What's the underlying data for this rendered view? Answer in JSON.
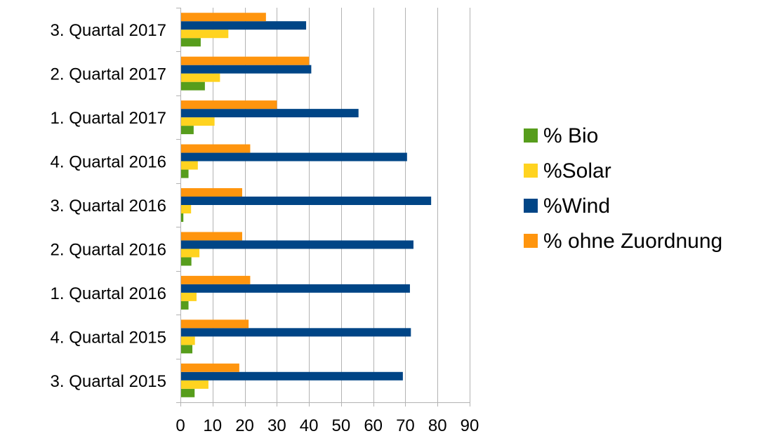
{
  "chart_data": {
    "type": "bar",
    "orientation": "horizontal",
    "title": "",
    "xlabel": "",
    "ylabel": "",
    "xlim": [
      0,
      90
    ],
    "x_ticks": [
      0,
      10,
      20,
      30,
      40,
      50,
      60,
      70,
      80,
      90
    ],
    "grid": "vertical",
    "legend_position": "right",
    "categories": [
      "3. Quartal 2015",
      "4. Quartal 2015",
      "1. Quartal 2016",
      "2. Quartal 2016",
      "3. Quartal 2016",
      "4. Quartal 2016",
      "1. Quartal 2017",
      "2. Quartal 2017",
      "3. Quartal 2017"
    ],
    "series": [
      {
        "name": "% Bio",
        "color": "#579d1c",
        "values": [
          4.2,
          3.5,
          2.3,
          3.2,
          0.7,
          2.3,
          3.9,
          7.4,
          6.1
        ]
      },
      {
        "name": "%Solar",
        "color": "#ffd320",
        "values": [
          8.5,
          4.3,
          4.8,
          5.7,
          3.1,
          5.2,
          10.4,
          12.1,
          14.7
        ]
      },
      {
        "name": "%Wind",
        "color": "#004586",
        "values": [
          69.0,
          71.5,
          71.2,
          72.3,
          77.8,
          70.3,
          55.2,
          40.5,
          38.9
        ]
      },
      {
        "name": "% ohne Zuordnung",
        "color": "#ff950e",
        "values": [
          18.1,
          21.0,
          21.5,
          19.0,
          19.0,
          21.5,
          29.8,
          39.8,
          26.4
        ]
      }
    ]
  }
}
